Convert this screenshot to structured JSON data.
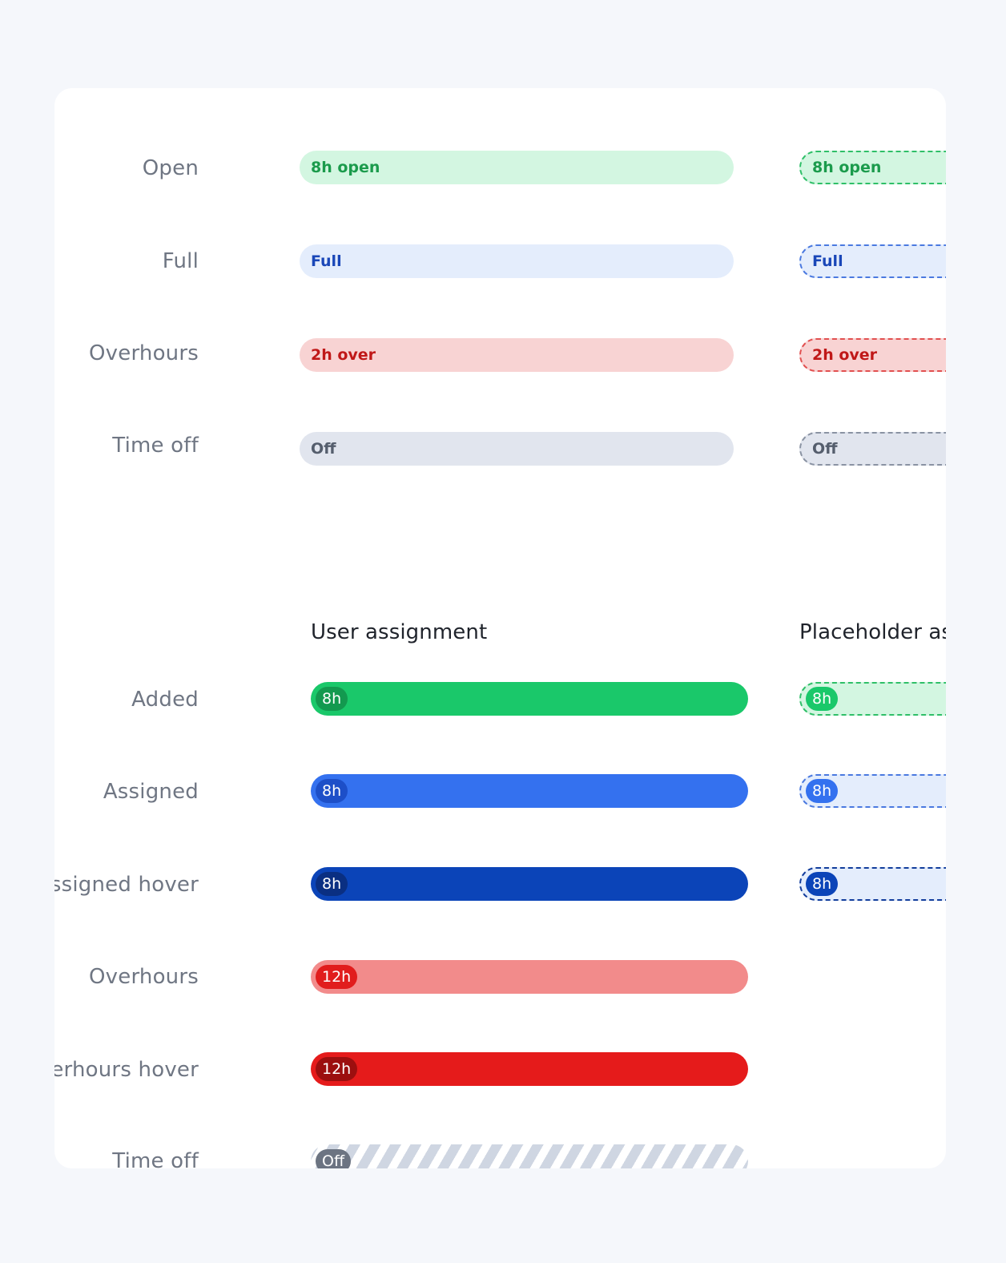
{
  "colors": {
    "open_bg": "#d3f6e1",
    "open_text": "#1b9b4c",
    "open_border": "#2fbf68",
    "full_bg": "#e4edfc",
    "full_text": "#1a47b8",
    "full_border": "#4a79e0",
    "over_bg": "#f8d3d3",
    "over_text": "#c01818",
    "over_border": "#e25050",
    "off_bg": "#e1e5ee",
    "off_text": "#555e6d",
    "off_border": "#8a93a3",
    "added": "#1ac86a",
    "added_chip": "#13994f",
    "assigned": "#3471ef",
    "assigned_chip": "#1d4fc8",
    "assigned_hover": "#0b44b8",
    "assigned_hover_chip": "#0a2f82",
    "overhours": "#f28b8b",
    "overhours_chip": "#e11d1d",
    "overhours_hover": "#e51b1b",
    "overhours_hover_chip": "#9c0f0f",
    "timeoff_chip": "#6c7482"
  },
  "top_section": {
    "rows": [
      {
        "label": "Open",
        "pill_text": "8h open",
        "dashed_text": "8h open"
      },
      {
        "label": "Full",
        "pill_text": "Full",
        "dashed_text": "Full"
      },
      {
        "label": "Overhours",
        "pill_text": "2h over",
        "dashed_text": "2h over"
      },
      {
        "label": "Time off",
        "pill_text": "Off",
        "dashed_text": "Off"
      }
    ]
  },
  "bottom_section": {
    "user_title": "User assignment",
    "placeholder_title": "Placeholder as",
    "rows": [
      {
        "label": "Added",
        "chip": "8h",
        "placeholder_chip": "8h"
      },
      {
        "label": "Assigned",
        "chip": "8h",
        "placeholder_chip": "8h"
      },
      {
        "label": "ssigned hover",
        "chip": "8h",
        "placeholder_chip": "8h"
      },
      {
        "label": "Overhours",
        "chip": "12h"
      },
      {
        "label": "erhours hover",
        "chip": "12h"
      },
      {
        "label": "Time off",
        "chip": "Off"
      }
    ]
  }
}
